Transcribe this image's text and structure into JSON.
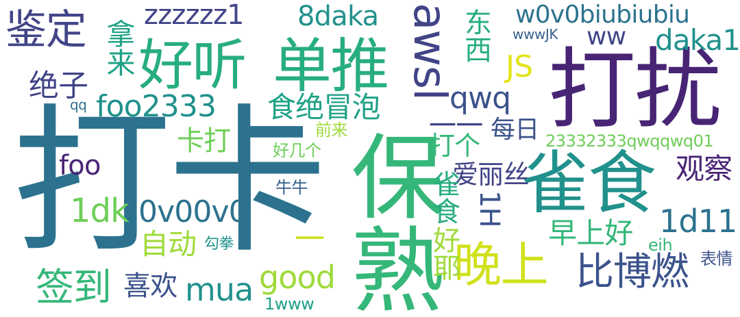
{
  "palette": {
    "purple": "#482475",
    "indigo": "#414487",
    "slate": "#3b528b",
    "blue": "#355f8d",
    "steel": "#2c728e",
    "teal": "#21918c",
    "sea": "#1fa187",
    "green": "#27ad81",
    "jade": "#35b779",
    "grass": "#6ece58",
    "lime": "#9fda3a",
    "yellow": "#d0e11c",
    "gold": "#e2e418"
  },
  "words": [
    {
      "text": "打卡"
    },
    {
      "text": "打扰"
    },
    {
      "text": "保熟"
    },
    {
      "text": "雀食"
    },
    {
      "text": "单推"
    },
    {
      "text": "好听"
    },
    {
      "text": "awsl"
    },
    {
      "text": "鉴定"
    },
    {
      "text": "晚上"
    },
    {
      "text": "比博燃"
    },
    {
      "text": "签到"
    },
    {
      "text": "zzzzzz1"
    },
    {
      "text": "8daka"
    },
    {
      "text": "w0v0biubiubiu"
    },
    {
      "text": "daka1"
    },
    {
      "text": "foo2333"
    },
    {
      "text": "食绝冒泡"
    },
    {
      "text": "绝子"
    },
    {
      "text": "拿来"
    },
    {
      "text": "东西"
    },
    {
      "text": "ww"
    },
    {
      "text": "JS"
    },
    {
      "text": "qwq"
    },
    {
      "text": "wwwJK"
    },
    {
      "text": "qq"
    },
    {
      "text": "每日"
    },
    {
      "text": "一一"
    },
    {
      "text": "前来"
    },
    {
      "text": "卡打"
    },
    {
      "text": "打个"
    },
    {
      "text": "好几个"
    },
    {
      "text": "23332333qwqqwq01"
    },
    {
      "text": "foo"
    },
    {
      "text": "观察"
    },
    {
      "text": "爱丽丝"
    },
    {
      "text": "牛牛"
    },
    {
      "text": "1dk"
    },
    {
      "text": "0v00v0"
    },
    {
      "text": "雀食"
    },
    {
      "text": "1H"
    },
    {
      "text": "1d11"
    },
    {
      "text": "早上好"
    },
    {
      "text": "自动"
    },
    {
      "text": "勾拳"
    },
    {
      "text": "eih"
    },
    {
      "text": "一"
    },
    {
      "text": "表情"
    },
    {
      "text": "good"
    },
    {
      "text": "好耶"
    },
    {
      "text": "喜欢"
    },
    {
      "text": "mua"
    },
    {
      "text": "1www"
    }
  ]
}
